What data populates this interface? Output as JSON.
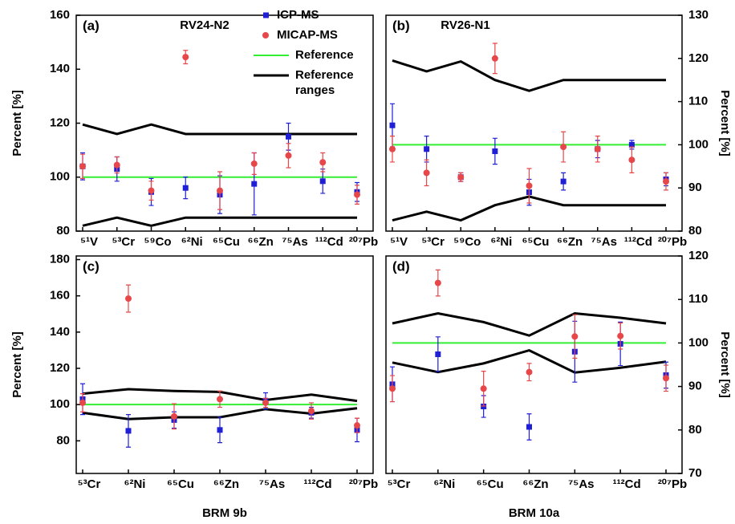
{
  "chart_data": [
    {
      "type": "scatter",
      "panel_label": "(a)",
      "title": "RV24-N2",
      "ylabel": "Percent [%]",
      "y_axis": "left",
      "ylim": [
        80,
        160
      ],
      "yticks": [
        80,
        100,
        120,
        140,
        160
      ],
      "legend": true,
      "categories": [
        "⁵¹V",
        "⁵³Cr",
        "⁵⁹Co",
        "⁶²Ni",
        "⁶⁵Cu",
        "⁶⁶Zn",
        "⁷⁵As",
        "¹¹²Cd",
        "²⁰⁷Pb"
      ],
      "series": [
        {
          "name": "ICP-MS",
          "color": "#1f1fd6",
          "marker": "square",
          "values": [
            104,
            103,
            94.5,
            96,
            93.5,
            97.5,
            115,
            98.5,
            94.5
          ],
          "errors": [
            5,
            4.5,
            5,
            4,
            7,
            11.5,
            5,
            4.5,
            3.5
          ]
        },
        {
          "name": "MICAP-MS",
          "color": "#e8474a",
          "marker": "circle",
          "values": [
            104,
            104.5,
            95,
            144.5,
            95,
            105,
            108,
            105.5,
            93.5
          ],
          "errors": [
            4.5,
            3,
            3.5,
            2.5,
            7,
            4,
            4.5,
            3.5,
            3.5
          ]
        },
        {
          "name": "Reference",
          "color": "#33ee33",
          "values": [
            100,
            100,
            100,
            100,
            100,
            100,
            100,
            100,
            100
          ]
        },
        {
          "name": "Reference ranges",
          "color": "#000000",
          "upper": [
            119.5,
            116,
            119.5,
            116,
            116,
            116,
            116,
            116,
            116
          ],
          "lower": [
            82,
            85,
            82,
            85,
            85,
            85,
            85,
            85,
            85
          ]
        }
      ]
    },
    {
      "type": "scatter",
      "panel_label": "(b)",
      "title": "RV26-N1",
      "ylabel": "Percent [%]",
      "y_axis": "right",
      "ylim": [
        80,
        130
      ],
      "yticks": [
        80,
        90,
        100,
        110,
        120,
        130
      ],
      "categories": [
        "⁵¹V",
        "⁵³Cr",
        "⁵⁹Co",
        "⁶²Ni",
        "⁶⁵Cu",
        "⁶⁶Zn",
        "⁷⁵As",
        "¹¹²Cd",
        "²⁰⁷Pb"
      ],
      "series": [
        {
          "color": "#1f1fd6",
          "marker": "square",
          "values": [
            104.5,
            99,
            92.5,
            98.5,
            89,
            91.5,
            99,
            100,
            92
          ],
          "errors": [
            5,
            3,
            1,
            3,
            3,
            2,
            2,
            1,
            1.5
          ]
        },
        {
          "color": "#e8474a",
          "marker": "circle",
          "values": [
            99,
            93.5,
            92.5,
            120,
            90.5,
            99.5,
            99,
            96.5,
            91.5
          ],
          "errors": [
            3,
            3,
            1,
            3.5,
            4,
            3.5,
            3,
            3,
            2
          ]
        },
        {
          "color": "#33ee33",
          "values": [
            100,
            100,
            100,
            100,
            100,
            100,
            100,
            100,
            100
          ]
        },
        {
          "color": "#000000",
          "upper": [
            119.5,
            117,
            119.3,
            115,
            112.5,
            115,
            115,
            115,
            115
          ],
          "lower": [
            82.5,
            84.5,
            82.5,
            86,
            88,
            86,
            86,
            86,
            86
          ]
        }
      ]
    },
    {
      "type": "scatter",
      "panel_label": "(c)",
      "xlabel": "BRM 9b",
      "ylabel": "Percent [%]",
      "y_axis": "left",
      "ylim": [
        62,
        182
      ],
      "yticks": [
        80,
        100,
        120,
        140,
        160,
        180
      ],
      "categories": [
        "⁵³Cr",
        "⁶²Ni",
        "⁶⁵Cu",
        "⁶⁶Zn",
        "⁷⁵As",
        "¹¹²Cd",
        "²⁰⁷Pb"
      ],
      "series": [
        {
          "color": "#1f1fd6",
          "marker": "square",
          "values": [
            103,
            85.5,
            91.5,
            86,
            102,
            95.5,
            86
          ],
          "errors": [
            8.5,
            9,
            4.5,
            7,
            4.5,
            3,
            6.5
          ]
        },
        {
          "color": "#e8474a",
          "marker": "circle",
          "values": [
            101,
            158.5,
            93.5,
            103,
            101,
            96.5,
            88.5
          ],
          "errors": [
            5,
            7.5,
            7,
            4.5,
            2.5,
            4.5,
            4
          ]
        },
        {
          "color": "#33ee33",
          "values": [
            100,
            100,
            100,
            100,
            100,
            100,
            100
          ]
        },
        {
          "color": "#000000",
          "upper": [
            106,
            108.5,
            107.5,
            107,
            102.5,
            105.5,
            102
          ],
          "lower": [
            95.5,
            92,
            93,
            93,
            97.5,
            95,
            98
          ]
        }
      ]
    },
    {
      "type": "scatter",
      "panel_label": "(d)",
      "xlabel": "BRM 10a",
      "ylabel": "Percent [%]",
      "y_axis": "right",
      "ylim": [
        70,
        120
      ],
      "yticks": [
        70,
        80,
        90,
        100,
        110,
        120
      ],
      "categories": [
        "⁵³Cr",
        "⁶²Ni",
        "⁶⁵Cu",
        "⁶⁶Zn",
        "⁷⁵As",
        "¹¹²Cd",
        "²⁰⁷Pb"
      ],
      "series": [
        {
          "color": "#1f1fd6",
          "marker": "square",
          "values": [
            90.5,
            97.4,
            85.4,
            80.7,
            98,
            99.8,
            92.6
          ],
          "errors": [
            4,
            4,
            2.5,
            3,
            7,
            5,
            3
          ]
        },
        {
          "color": "#e8474a",
          "marker": "circle",
          "values": [
            89.5,
            113.8,
            89.5,
            93.3,
            101.5,
            101.6,
            91.9
          ],
          "errors": [
            3,
            3,
            4,
            2,
            5,
            3,
            3
          ]
        },
        {
          "color": "#33ee33",
          "values": [
            100,
            100,
            100,
            100,
            100,
            100,
            100
          ]
        },
        {
          "color": "#000000",
          "upper": [
            104.5,
            106.8,
            104.8,
            101.7,
            106.8,
            105.8,
            104.5
          ],
          "lower": [
            95.5,
            93.3,
            95.3,
            98.3,
            93.2,
            94.3,
            95.7
          ]
        }
      ]
    }
  ]
}
